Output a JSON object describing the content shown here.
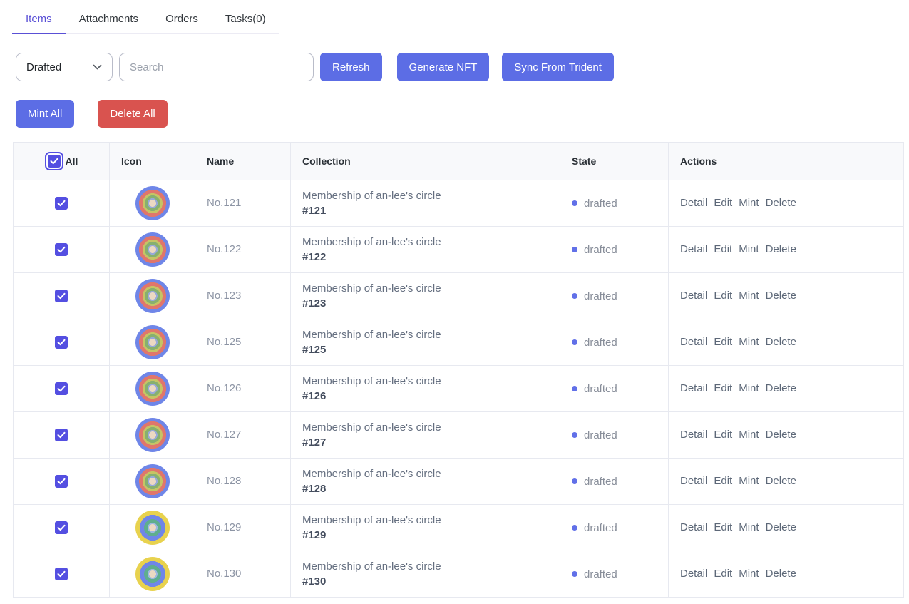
{
  "tabs": [
    {
      "label": "Items",
      "active": true
    },
    {
      "label": "Attachments",
      "active": false
    },
    {
      "label": "Orders",
      "active": false
    },
    {
      "label": "Tasks(0)",
      "active": false
    }
  ],
  "filters": {
    "state_select": {
      "value": "Drafted"
    },
    "search": {
      "placeholder": "Search"
    },
    "refresh_label": "Refresh",
    "generate_label": "Generate NFT",
    "sync_label": "Sync From Trident"
  },
  "bulk_actions": {
    "mint_all_label": "Mint All",
    "delete_all_label": "Delete All"
  },
  "table": {
    "columns": {
      "select": "All",
      "icon": "Icon",
      "name": "Name",
      "collection": "Collection",
      "state": "State",
      "actions": "Actions"
    },
    "select_all_checked": true,
    "row_actions": [
      "Detail",
      "Edit",
      "Mint",
      "Delete"
    ],
    "rows": [
      {
        "checked": true,
        "icon_variant": "blue",
        "name": "No.121",
        "collection": "Membership of an-lee's circle",
        "collection_id": "#121",
        "state": "drafted"
      },
      {
        "checked": true,
        "icon_variant": "blue",
        "name": "No.122",
        "collection": "Membership of an-lee's circle",
        "collection_id": "#122",
        "state": "drafted"
      },
      {
        "checked": true,
        "icon_variant": "blue",
        "name": "No.123",
        "collection": "Membership of an-lee's circle",
        "collection_id": "#123",
        "state": "drafted"
      },
      {
        "checked": true,
        "icon_variant": "blue",
        "name": "No.125",
        "collection": "Membership of an-lee's circle",
        "collection_id": "#125",
        "state": "drafted"
      },
      {
        "checked": true,
        "icon_variant": "blue",
        "name": "No.126",
        "collection": "Membership of an-lee's circle",
        "collection_id": "#126",
        "state": "drafted"
      },
      {
        "checked": true,
        "icon_variant": "blue",
        "name": "No.127",
        "collection": "Membership of an-lee's circle",
        "collection_id": "#127",
        "state": "drafted"
      },
      {
        "checked": true,
        "icon_variant": "blue",
        "name": "No.128",
        "collection": "Membership of an-lee's circle",
        "collection_id": "#128",
        "state": "drafted"
      },
      {
        "checked": true,
        "icon_variant": "yellow",
        "name": "No.129",
        "collection": "Membership of an-lee's circle",
        "collection_id": "#129",
        "state": "drafted"
      },
      {
        "checked": true,
        "icon_variant": "yellow",
        "name": "No.130",
        "collection": "Membership of an-lee's circle",
        "collection_id": "#130",
        "state": "drafted"
      }
    ]
  },
  "icon_palettes": {
    "blue": [
      [
        "#ecd9c3",
        5
      ],
      [
        "#97a9d8",
        7
      ],
      [
        "#87b06f",
        11
      ],
      [
        "#c6c465",
        14
      ],
      [
        "#e0766b",
        19
      ],
      [
        "#6f86e8",
        24
      ]
    ],
    "yellow": [
      [
        "#ecd9c3",
        5
      ],
      [
        "#9db8e0",
        7
      ],
      [
        "#5fae8e",
        12
      ],
      [
        "#6f86e8",
        18
      ],
      [
        "#e8d24e",
        24
      ]
    ]
  },
  "colors": {
    "accent_indigo": "#544fe1",
    "active_tab": "#5a50d6",
    "button_primary": "#5c6de5",
    "button_danger": "#d9534f",
    "state_dot": "#6170e8",
    "header_bg": "#f8f9fb",
    "table_border": "#e7e9f0"
  }
}
